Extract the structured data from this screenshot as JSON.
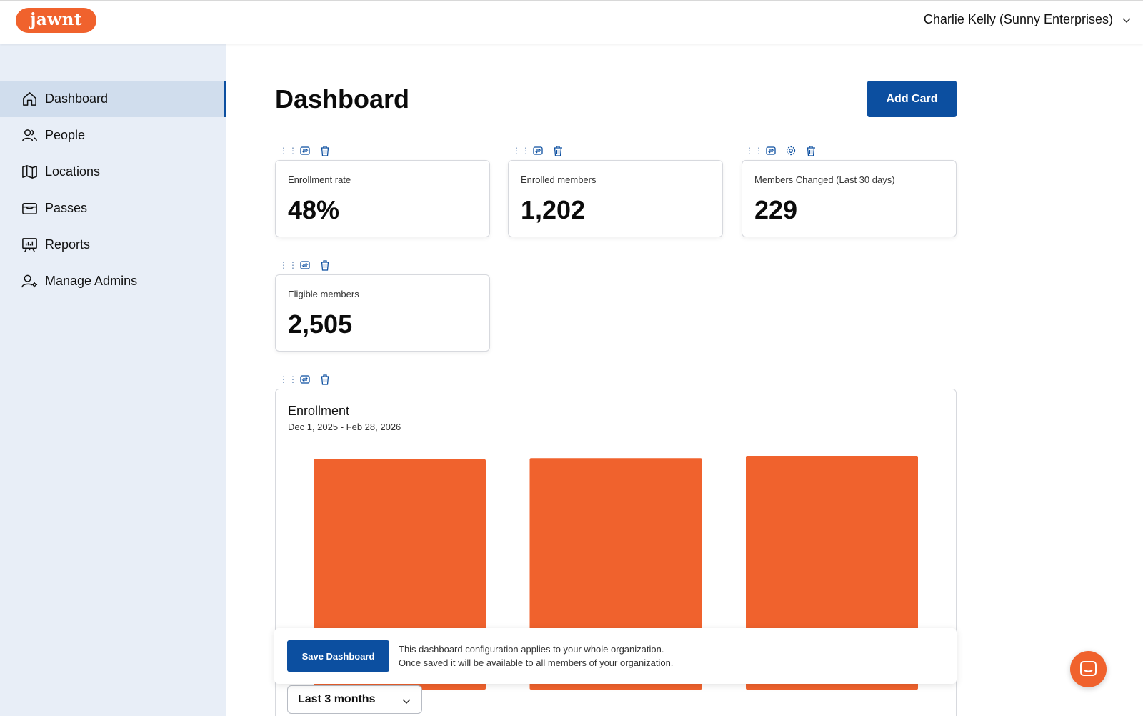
{
  "brand": {
    "logo_text": "jawnt",
    "accent": "#f0622d",
    "primary": "#0c4fa0"
  },
  "header": {
    "user_name": "Charlie Kelly (Sunny Enterprises)"
  },
  "sidebar": {
    "items": [
      {
        "label": "Dashboard",
        "icon": "home-icon",
        "active": true
      },
      {
        "label": "People",
        "icon": "people-icon"
      },
      {
        "label": "Locations",
        "icon": "map-icon"
      },
      {
        "label": "Passes",
        "icon": "wallet-icon"
      },
      {
        "label": "Reports",
        "icon": "presentation-icon"
      },
      {
        "label": "Manage Admins",
        "icon": "admin-user-icon"
      }
    ]
  },
  "main": {
    "title": "Dashboard",
    "add_card_label": "Add Card",
    "cards": [
      {
        "label": "Enrollment rate",
        "value": "48%"
      },
      {
        "label": "Enrolled members",
        "value": "1,202"
      },
      {
        "label": "Members Changed (Last 30 days)",
        "value": "229"
      },
      {
        "label": "Eligible members",
        "value": "2,505"
      }
    ],
    "enrollment_card": {
      "title": "Enrollment",
      "date_range": "Dec 1, 2025 - Feb 28, 2026",
      "range_select": "Last 3 months"
    }
  },
  "save_bar": {
    "button_label": "Save Dashboard",
    "line1": "This dashboard configuration applies to your whole organization.",
    "line2": "Once saved it will be available to all members of your organization."
  },
  "chart_data": {
    "type": "bar",
    "categories": [
      "",
      "",
      ""
    ],
    "values": [
      98.5,
      99.0,
      100.0
    ],
    "bar_color": "#f0622d"
  }
}
